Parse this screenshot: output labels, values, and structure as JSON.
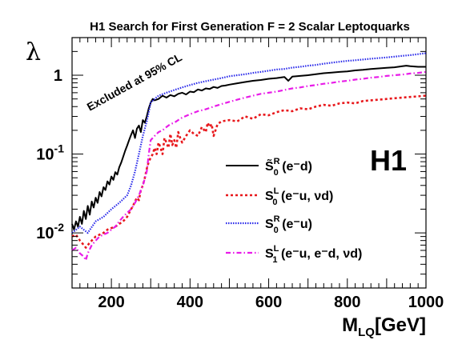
{
  "chart_data": {
    "type": "line",
    "title": "H1 Search for First Generation F = 2 Scalar Leptoquarks",
    "xlabel": "M",
    "xlabel_sub": "LQ",
    "xlabel_unit": "[GeV]",
    "ylabel": "λ",
    "xlim": [
      100,
      1000
    ],
    "ylim": [
      0.002,
      3
    ],
    "yscale": "log",
    "xticks": [
      "200",
      "400",
      "600",
      "800",
      "1000"
    ],
    "yticks": [
      {
        "value": 0.01,
        "base": "10",
        "exp": "-2"
      },
      {
        "value": 0.1,
        "base": "10",
        "exp": "-1"
      },
      {
        "value": 1,
        "base": "",
        "exp": "1"
      }
    ],
    "annotation": "Excluded at 95% CL",
    "brand_label": "H1",
    "legend_position": "center-right",
    "series": [
      {
        "legend": {
          "main": "S̃",
          "sup": "R",
          "sub": "0",
          "tail": " (e⁻d)"
        },
        "color": "#000000",
        "dash": "",
        "width": 2,
        "x": [
          100,
          105,
          110,
          115,
          120,
          125,
          130,
          135,
          140,
          145,
          150,
          155,
          160,
          165,
          170,
          175,
          180,
          185,
          190,
          195,
          200,
          205,
          210,
          215,
          220,
          225,
          230,
          235,
          240,
          245,
          250,
          255,
          260,
          265,
          270,
          275,
          280,
          285,
          290,
          295,
          300,
          305,
          310,
          320,
          330,
          340,
          350,
          360,
          370,
          380,
          390,
          400,
          410,
          420,
          430,
          440,
          450,
          460,
          470,
          480,
          490,
          500,
          520,
          540,
          560,
          580,
          600,
          620,
          640,
          650,
          660,
          680,
          700,
          720,
          740,
          760,
          780,
          800,
          820,
          840,
          860,
          880,
          900,
          920,
          940,
          950,
          960,
          980,
          1000
        ],
        "y": [
          0.013,
          0.011,
          0.014,
          0.012,
          0.016,
          0.013,
          0.019,
          0.015,
          0.022,
          0.017,
          0.025,
          0.021,
          0.028,
          0.024,
          0.033,
          0.029,
          0.038,
          0.035,
          0.045,
          0.041,
          0.052,
          0.047,
          0.059,
          0.055,
          0.068,
          0.078,
          0.092,
          0.11,
          0.128,
          0.15,
          0.175,
          0.2,
          0.16,
          0.21,
          0.23,
          0.19,
          0.27,
          0.25,
          0.3,
          0.38,
          0.45,
          0.5,
          0.48,
          0.5,
          0.55,
          0.52,
          0.56,
          0.54,
          0.58,
          0.6,
          0.57,
          0.62,
          0.61,
          0.66,
          0.64,
          0.68,
          0.67,
          0.71,
          0.69,
          0.73,
          0.74,
          0.76,
          0.79,
          0.82,
          0.85,
          0.87,
          0.9,
          0.92,
          0.95,
          0.85,
          0.96,
          0.98,
          1.0,
          1.03,
          1.06,
          1.08,
          1.1,
          1.12,
          1.15,
          1.17,
          1.2,
          1.22,
          1.24,
          1.26,
          1.3,
          1.32,
          1.3,
          1.28,
          1.28
        ]
      },
      {
        "legend": {
          "main": "S",
          "sup": "L",
          "sub": "0",
          "tail": " (e⁻u, νd)"
        },
        "color": "#e8181c",
        "dash": "3,3",
        "width": 2.6,
        "x": [
          100,
          110,
          120,
          130,
          135,
          140,
          145,
          150,
          160,
          170,
          180,
          190,
          200,
          210,
          220,
          230,
          240,
          250,
          255,
          260,
          265,
          270,
          275,
          280,
          285,
          290,
          295,
          300,
          305,
          310,
          315,
          320,
          325,
          330,
          335,
          340,
          345,
          350,
          355,
          360,
          365,
          370,
          375,
          380,
          390,
          400,
          410,
          420,
          430,
          440,
          445,
          450,
          455,
          460,
          470,
          480,
          500,
          520,
          540,
          560,
          580,
          600,
          620,
          640,
          660,
          680,
          700,
          720,
          740,
          760,
          780,
          800,
          820,
          840,
          860,
          880,
          900,
          920,
          940,
          960,
          980,
          1000
        ],
        "y": [
          0.009,
          0.0095,
          0.008,
          0.007,
          0.0065,
          0.007,
          0.0075,
          0.008,
          0.009,
          0.0095,
          0.01,
          0.011,
          0.0115,
          0.012,
          0.013,
          0.014,
          0.016,
          0.02,
          0.022,
          0.025,
          0.028,
          0.026,
          0.035,
          0.04,
          0.05,
          0.065,
          0.08,
          0.09,
          0.1,
          0.12,
          0.1,
          0.14,
          0.12,
          0.1,
          0.16,
          0.14,
          0.12,
          0.18,
          0.13,
          0.15,
          0.12,
          0.19,
          0.16,
          0.14,
          0.17,
          0.2,
          0.18,
          0.17,
          0.22,
          0.19,
          0.25,
          0.22,
          0.24,
          0.17,
          0.24,
          0.26,
          0.27,
          0.26,
          0.3,
          0.28,
          0.32,
          0.31,
          0.34,
          0.36,
          0.35,
          0.38,
          0.37,
          0.4,
          0.42,
          0.41,
          0.44,
          0.45,
          0.44,
          0.47,
          0.48,
          0.49,
          0.5,
          0.51,
          0.52,
          0.53,
          0.54,
          0.55
        ]
      },
      {
        "legend": {
          "main": "S",
          "sup": "R",
          "sub": "0",
          "tail": " (e⁻u)"
        },
        "color": "#2a2aea",
        "dash": "1.5,1.5",
        "width": 2.2,
        "x": [
          100,
          120,
          140,
          160,
          180,
          200,
          220,
          240,
          250,
          260,
          270,
          280,
          290,
          295,
          300,
          310,
          320,
          340,
          360,
          380,
          400,
          420,
          440,
          460,
          480,
          500,
          520,
          540,
          560,
          580,
          600,
          620,
          640,
          660,
          680,
          700,
          720,
          740,
          760,
          780,
          800,
          820,
          840,
          860,
          880,
          900,
          920,
          940,
          960,
          980,
          1000
        ],
        "y": [
          0.01,
          0.012,
          0.01,
          0.014,
          0.016,
          0.02,
          0.024,
          0.03,
          0.04,
          0.06,
          0.1,
          0.17,
          0.26,
          0.34,
          0.45,
          0.5,
          0.55,
          0.6,
          0.65,
          0.7,
          0.75,
          0.8,
          0.84,
          0.88,
          0.92,
          0.97,
          1.0,
          1.03,
          1.07,
          1.1,
          1.14,
          1.18,
          1.2,
          1.25,
          1.28,
          1.32,
          1.35,
          1.4,
          1.44,
          1.48,
          1.52,
          1.55,
          1.58,
          1.62,
          1.65,
          1.68,
          1.72,
          1.76,
          1.8,
          1.85,
          1.9
        ]
      },
      {
        "legend": {
          "main": "S",
          "sup": "L",
          "sub": "1",
          "tail": " (e⁻u, e⁻d, νd)"
        },
        "color": "#e81ce8",
        "dash": "6,3,1.5,3",
        "width": 2.2,
        "x": [
          100,
          110,
          120,
          130,
          135,
          140,
          150,
          160,
          170,
          180,
          190,
          200,
          210,
          220,
          230,
          240,
          250,
          260,
          270,
          280,
          290,
          295,
          300,
          310,
          320,
          330,
          340,
          350,
          360,
          370,
          380,
          400,
          420,
          440,
          460,
          480,
          500,
          520,
          540,
          560,
          580,
          600,
          620,
          640,
          660,
          680,
          700,
          720,
          740,
          760,
          780,
          800,
          820,
          840,
          860,
          880,
          900,
          920,
          940,
          960,
          980,
          1000
        ],
        "y": [
          0.006,
          0.0065,
          0.0055,
          0.005,
          0.0045,
          0.0055,
          0.007,
          0.008,
          0.009,
          0.0095,
          0.01,
          0.011,
          0.012,
          0.014,
          0.016,
          0.018,
          0.02,
          0.024,
          0.03,
          0.04,
          0.06,
          0.1,
          0.15,
          0.17,
          0.19,
          0.2,
          0.22,
          0.24,
          0.25,
          0.27,
          0.29,
          0.32,
          0.35,
          0.37,
          0.4,
          0.43,
          0.46,
          0.49,
          0.52,
          0.55,
          0.58,
          0.6,
          0.62,
          0.65,
          0.68,
          0.7,
          0.73,
          0.75,
          0.78,
          0.8,
          0.83,
          0.85,
          0.88,
          0.9,
          0.93,
          0.95,
          0.98,
          1.0,
          1.02,
          1.05,
          1.07,
          1.1
        ]
      }
    ]
  }
}
